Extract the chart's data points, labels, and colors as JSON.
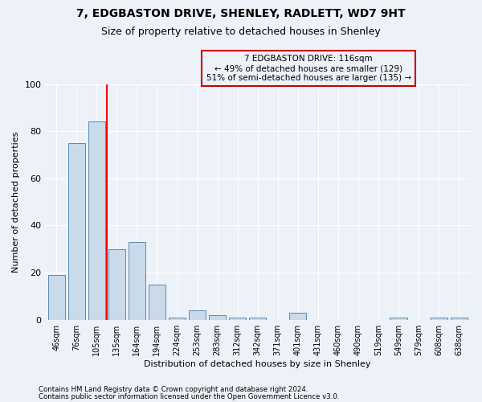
{
  "title_line1": "7, EDGBASTON DRIVE, SHENLEY, RADLETT, WD7 9HT",
  "title_line2": "Size of property relative to detached houses in Shenley",
  "xlabel": "Distribution of detached houses by size in Shenley",
  "ylabel": "Number of detached properties",
  "bar_labels": [
    "46sqm",
    "76sqm",
    "105sqm",
    "135sqm",
    "164sqm",
    "194sqm",
    "224sqm",
    "253sqm",
    "283sqm",
    "312sqm",
    "342sqm",
    "371sqm",
    "401sqm",
    "431sqm",
    "460sqm",
    "490sqm",
    "519sqm",
    "549sqm",
    "579sqm",
    "608sqm",
    "638sqm"
  ],
  "bar_values": [
    19,
    75,
    84,
    30,
    33,
    15,
    1,
    4,
    2,
    1,
    1,
    0,
    3,
    0,
    0,
    0,
    0,
    1,
    0,
    1,
    1
  ],
  "bar_color": "#c9daea",
  "bar_edgecolor": "#5a8ab0",
  "bg_color": "#edf2f9",
  "grid_color": "#ffffff",
  "redline_x": 2.5,
  "annotation_line1": "7 EDGBASTON DRIVE: 116sqm",
  "annotation_line2": "← 49% of detached houses are smaller (129)",
  "annotation_line3": "51% of semi-detached houses are larger (135) →",
  "annotation_box_edgecolor": "#cc0000",
  "footer_line1": "Contains HM Land Registry data © Crown copyright and database right 2024.",
  "footer_line2": "Contains public sector information licensed under the Open Government Licence v3.0.",
  "ylim": [
    0,
    100
  ],
  "yticks": [
    0,
    20,
    40,
    60,
    80,
    100
  ]
}
